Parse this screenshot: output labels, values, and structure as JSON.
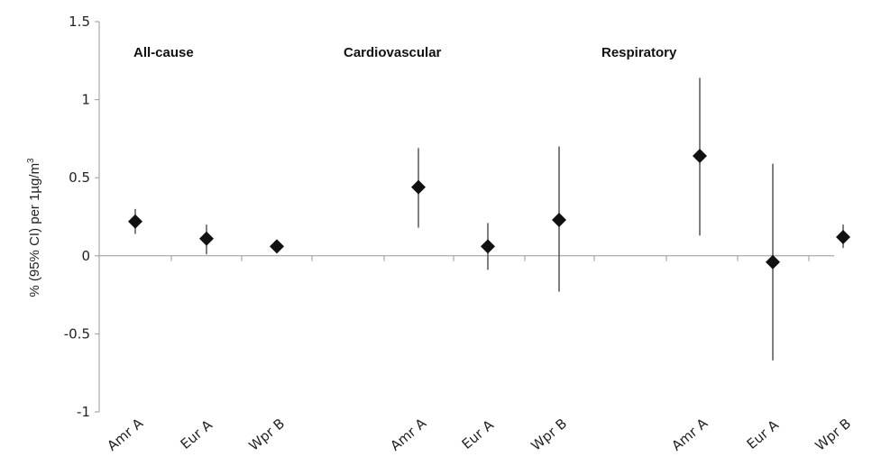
{
  "chart_data": {
    "type": "scatter",
    "title": "",
    "xlabel": "",
    "ylabel": "% (95% CI) per 1µg/m",
    "ylabel_superscript": "3",
    "ylim": [
      -1,
      1.5
    ],
    "yticks": [
      "1.5",
      "1",
      "0.5",
      "0",
      "-0.5",
      "-1"
    ],
    "grid": false,
    "legend": "none",
    "marker": "diamond",
    "colors": {
      "marker": "#111111",
      "errorbar": "#555555",
      "axis": "#999999"
    },
    "groups": [
      {
        "label": "All-cause",
        "categories": [
          "Amr A",
          "Eur A",
          "Wpr B"
        ],
        "estimates": [
          0.22,
          0.11,
          0.06
        ],
        "ci_lower": [
          0.14,
          0.01,
          0.03
        ],
        "ci_upper": [
          0.3,
          0.2,
          0.09
        ]
      },
      {
        "label": "Cardiovascular",
        "categories": [
          "Amr A",
          "Eur A",
          "Wpr B"
        ],
        "estimates": [
          0.44,
          0.06,
          0.23
        ],
        "ci_lower": [
          0.18,
          -0.09,
          -0.23
        ],
        "ci_upper": [
          0.69,
          0.21,
          0.7
        ]
      },
      {
        "label": "Respiratory",
        "categories": [
          "Amr A",
          "Eur A",
          "Wpr B"
        ],
        "estimates": [
          0.64,
          -0.04,
          0.12
        ],
        "ci_lower": [
          0.13,
          -0.67,
          0.05
        ],
        "ci_upper": [
          1.14,
          0.59,
          0.2
        ]
      }
    ]
  }
}
